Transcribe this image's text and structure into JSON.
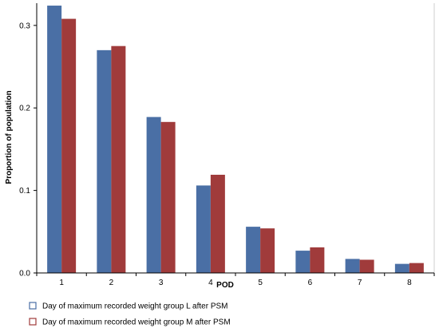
{
  "chart_data": {
    "type": "bar",
    "title": "",
    "xlabel": "POD",
    "ylabel": "Proportion of population",
    "categories": [
      "1",
      "2",
      "3",
      "4",
      "5",
      "6",
      "7",
      "8"
    ],
    "ylim": [
      0,
      0.325
    ],
    "yticks": [
      0.0,
      0.1,
      0.2,
      0.3
    ],
    "ytick_labels": [
      "0.0",
      "0.1",
      "0.2",
      "0.3"
    ],
    "grid": false,
    "legend_position": "bottom",
    "series": [
      {
        "name": "Day of maximum recorded weight group L after PSM",
        "color": "#4A6FA5",
        "values": [
          0.324,
          0.27,
          0.189,
          0.106,
          0.056,
          0.027,
          0.017,
          0.011
        ]
      },
      {
        "name": "Day of maximum recorded weight group M after PSM",
        "color": "#A03B3B",
        "values": [
          0.308,
          0.275,
          0.183,
          0.119,
          0.054,
          0.031,
          0.016,
          0.012
        ]
      }
    ]
  }
}
